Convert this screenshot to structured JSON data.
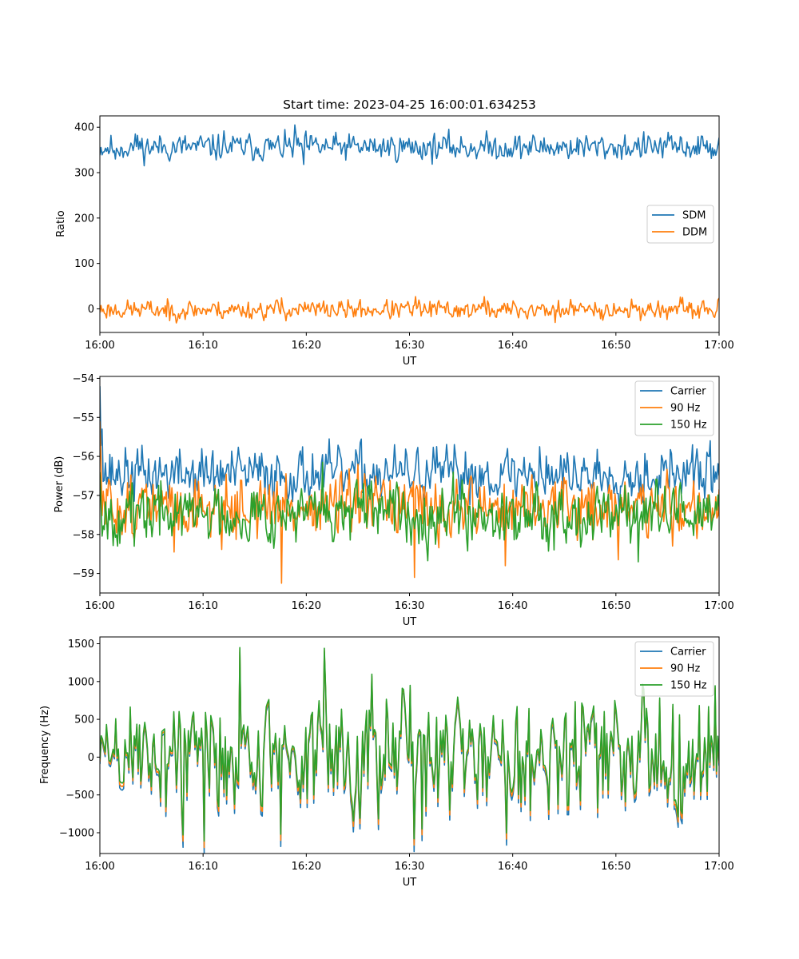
{
  "chart_data": [
    {
      "type": "line",
      "title": "Start time: 2023-04-25 16:00:01.634253",
      "xlabel": "UT",
      "ylabel": "Ratio",
      "xlim": [
        "16:00",
        "17:00"
      ],
      "ylim": [
        -52,
        425
      ],
      "xticks": [
        "16:00",
        "16:10",
        "16:20",
        "16:30",
        "16:40",
        "16:50",
        "17:00"
      ],
      "yticks": [
        0,
        100,
        200,
        300,
        400
      ],
      "legend": "center-right",
      "series": [
        {
          "name": "SDM",
          "color": "#1f77b4",
          "kind": "noise",
          "n": 560,
          "mean": 356,
          "amp": 14,
          "seed": 11,
          "spikes": [
            [
              0.315,
              405
            ],
            [
              0.2,
              392
            ],
            [
              0.06,
              382
            ],
            [
              0.33,
              318
            ],
            [
              0.025,
              330
            ]
          ]
        },
        {
          "name": "DDM",
          "color": "#ff7f0e",
          "kind": "noise",
          "n": 560,
          "mean": -2,
          "amp": 10,
          "seed": 23,
          "spikes": [
            [
              0.293,
              24
            ],
            [
              0.51,
              27
            ],
            [
              0.62,
              27
            ],
            [
              0.113,
              -26
            ],
            [
              0.735,
              -30
            ],
            [
              0.69,
              -22
            ],
            [
              0.8,
              14
            ]
          ]
        }
      ]
    },
    {
      "type": "line",
      "xlabel": "UT",
      "ylabel": "Power (dB)",
      "xlim": [
        "16:00",
        "17:00"
      ],
      "ylim": [
        -59.5,
        -53.95
      ],
      "xticks": [
        "16:00",
        "16:10",
        "16:20",
        "16:30",
        "16:40",
        "16:50",
        "17:00"
      ],
      "yticks": [
        -54,
        -55,
        -56,
        -57,
        -58,
        -59
      ],
      "legend": "top-right",
      "series": [
        {
          "name": "Carrier",
          "color": "#1f77b4",
          "kind": "noise",
          "n": 560,
          "mean": -56.45,
          "amp": 0.32,
          "seed": 37,
          "start": -54.2,
          "spikes": [
            [
              0.003,
              -55.3
            ],
            [
              0.71,
              -55.75
            ],
            [
              0.985,
              -55.6
            ],
            [
              0.42,
              -55.65
            ]
          ]
        },
        {
          "name": "90 Hz",
          "color": "#ff7f0e",
          "kind": "noise",
          "n": 560,
          "mean": -57.3,
          "amp": 0.38,
          "seed": 51,
          "start": -55.1,
          "spikes": [
            [
              0.293,
              -59.25
            ],
            [
              0.508,
              -59.1
            ],
            [
              0.655,
              -58.8
            ],
            [
              0.838,
              -58.65
            ],
            [
              0.12,
              -58.45
            ],
            [
              0.6,
              -56.5
            ]
          ]
        },
        {
          "name": "150 Hz",
          "color": "#2ca02c",
          "kind": "noise",
          "n": 560,
          "mean": -57.45,
          "amp": 0.36,
          "seed": 67,
          "start": -56.4,
          "spikes": [
            [
              0.36,
              -56.15
            ],
            [
              0.57,
              -56.4
            ],
            [
              0.87,
              -58.7
            ],
            [
              0.055,
              -58.3
            ]
          ]
        }
      ]
    },
    {
      "type": "line",
      "xlabel": "UT",
      "ylabel": "Frequency (Hz)",
      "xlim": [
        "16:00",
        "17:00"
      ],
      "ylim": [
        -1275,
        1590
      ],
      "xticks": [
        "16:00",
        "16:10",
        "16:20",
        "16:30",
        "16:40",
        "16:50",
        "17:00"
      ],
      "yticks": [
        -1000,
        -500,
        0,
        500,
        1000,
        1500
      ],
      "legend": "top-right",
      "series": [
        {
          "name": "Carrier",
          "color": "#1f77b4",
          "kind": "base",
          "offset": -100
        },
        {
          "name": "90 Hz",
          "color": "#ff7f0e",
          "kind": "base",
          "offset": -50
        },
        {
          "name": "150 Hz",
          "color": "#2ca02c",
          "kind": "base",
          "offset": 0
        }
      ],
      "base": {
        "n": 470,
        "mean": 60,
        "amp": 370,
        "seed": 89,
        "spikes": [
          [
            0.227,
            1450
          ],
          [
            0.362,
            1440
          ],
          [
            0.135,
            -1030
          ],
          [
            0.168,
            -1110
          ],
          [
            0.293,
            -1020
          ],
          [
            0.508,
            -1080
          ],
          [
            0.52,
            -950
          ],
          [
            0.5,
            950
          ]
        ]
      }
    }
  ]
}
